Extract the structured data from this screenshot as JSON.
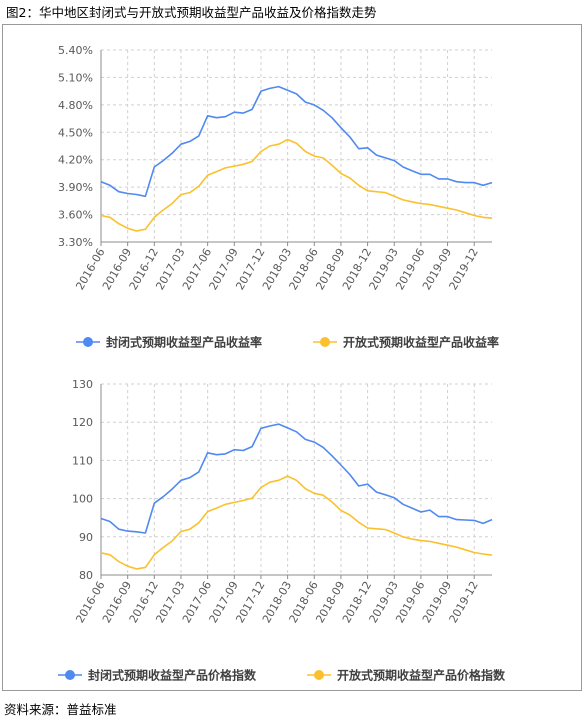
{
  "figure_title": "图2：华中地区封闭式与开放式预期收益型产品收益及价格指数走势",
  "source_note": "资料来源：普益标准",
  "colors": {
    "series1": "#5089f0",
    "series2": "#fbc02d",
    "grid": "#d0d0d0",
    "axis": "#8c8c8c"
  },
  "chart_data": [
    {
      "type": "line",
      "title": "",
      "xlabel": "",
      "ylabel": "",
      "ylim": [
        3.3,
        5.4
      ],
      "y_ticks": [
        "3.30%",
        "3.60%",
        "3.90%",
        "4.20%",
        "4.50%",
        "4.80%",
        "5.10%",
        "5.40%"
      ],
      "x_tick_labels": [
        "2016-06",
        "2016-09",
        "2016-12",
        "2017-03",
        "2017-06",
        "2017-09",
        "2017-12",
        "2018-03",
        "2018-06",
        "2018-09",
        "2018-12",
        "2019-03",
        "2019-06",
        "2019-09",
        "2019-12"
      ],
      "grid": true,
      "legend_position": "bottom",
      "x": [
        "2016-06",
        "2016-07",
        "2016-08",
        "2016-09",
        "2016-10",
        "2016-11",
        "2016-12",
        "2017-01",
        "2017-02",
        "2017-03",
        "2017-04",
        "2017-05",
        "2017-06",
        "2017-07",
        "2017-08",
        "2017-09",
        "2017-10",
        "2017-11",
        "2017-12",
        "2018-01",
        "2018-02",
        "2018-03",
        "2018-04",
        "2018-05",
        "2018-06",
        "2018-07",
        "2018-08",
        "2018-09",
        "2018-10",
        "2018-11",
        "2018-12",
        "2019-01",
        "2019-02",
        "2019-03",
        "2019-04",
        "2019-05",
        "2019-06",
        "2019-07",
        "2019-08",
        "2019-09",
        "2019-10",
        "2019-11",
        "2019-12",
        "2020-01",
        "2020-02"
      ],
      "series": [
        {
          "name": "封闭式预期收益型产品收益率",
          "values": [
            3.96,
            3.92,
            3.85,
            3.83,
            3.82,
            3.8,
            4.12,
            4.19,
            4.27,
            4.37,
            4.4,
            4.46,
            4.68,
            4.66,
            4.67,
            4.72,
            4.71,
            4.75,
            4.95,
            4.98,
            5.0,
            4.96,
            4.92,
            4.83,
            4.8,
            4.74,
            4.66,
            4.55,
            4.45,
            4.32,
            4.33,
            4.25,
            4.22,
            4.19,
            4.12,
            4.08,
            4.04,
            4.04,
            3.99,
            3.99,
            3.96,
            3.95,
            3.95,
            3.92,
            3.95
          ]
        },
        {
          "name": "开放式预期收益型产品收益率",
          "values": [
            3.59,
            3.57,
            3.5,
            3.45,
            3.42,
            3.44,
            3.57,
            3.65,
            3.72,
            3.82,
            3.84,
            3.91,
            4.03,
            4.07,
            4.11,
            4.13,
            4.15,
            4.18,
            4.29,
            4.35,
            4.37,
            4.42,
            4.38,
            4.29,
            4.24,
            4.22,
            4.14,
            4.05,
            4.0,
            3.92,
            3.86,
            3.85,
            3.84,
            3.8,
            3.76,
            3.74,
            3.72,
            3.71,
            3.69,
            3.67,
            3.65,
            3.62,
            3.59,
            3.57,
            3.56
          ]
        }
      ]
    },
    {
      "type": "line",
      "title": "",
      "xlabel": "",
      "ylabel": "",
      "ylim": [
        80,
        130
      ],
      "y_ticks": [
        "80",
        "90",
        "100",
        "110",
        "120",
        "130"
      ],
      "x_tick_labels": [
        "2016-06",
        "2016-09",
        "2016-12",
        "2017-03",
        "2017-06",
        "2017-09",
        "2017-12",
        "2018-03",
        "2018-06",
        "2018-09",
        "2018-12",
        "2019-03",
        "2019-06",
        "2019-09",
        "2019-12"
      ],
      "grid": true,
      "legend_position": "bottom",
      "x": [
        "2016-06",
        "2016-07",
        "2016-08",
        "2016-09",
        "2016-10",
        "2016-11",
        "2016-12",
        "2017-01",
        "2017-02",
        "2017-03",
        "2017-04",
        "2017-05",
        "2017-06",
        "2017-07",
        "2017-08",
        "2017-09",
        "2017-10",
        "2017-11",
        "2017-12",
        "2018-01",
        "2018-02",
        "2018-03",
        "2018-04",
        "2018-05",
        "2018-06",
        "2018-07",
        "2018-08",
        "2018-09",
        "2018-10",
        "2018-11",
        "2018-12",
        "2019-01",
        "2019-02",
        "2019-03",
        "2019-04",
        "2019-05",
        "2019-06",
        "2019-07",
        "2019-08",
        "2019-09",
        "2019-10",
        "2019-11",
        "2019-12",
        "2020-01",
        "2020-02"
      ],
      "series": [
        {
          "name": "封闭式预期收益型产品价格指数",
          "values": [
            94.8,
            94.0,
            92.0,
            91.5,
            91.3,
            91.0,
            98.8,
            100.5,
            102.5,
            104.8,
            105.5,
            107.0,
            112.0,
            111.5,
            111.7,
            112.8,
            112.6,
            113.6,
            118.4,
            119.0,
            119.5,
            118.5,
            117.5,
            115.5,
            114.8,
            113.4,
            111.2,
            108.8,
            106.3,
            103.3,
            103.8,
            101.7,
            101.0,
            100.2,
            98.5,
            97.5,
            96.5,
            97.0,
            95.3,
            95.3,
            94.5,
            94.4,
            94.3,
            93.5,
            94.5
          ]
        },
        {
          "name": "开放式预期收益型产品价格指数",
          "values": [
            85.8,
            85.3,
            83.5,
            82.3,
            81.6,
            82.0,
            85.3,
            87.2,
            88.9,
            91.4,
            92.0,
            93.7,
            96.6,
            97.5,
            98.5,
            99.0,
            99.5,
            100.1,
            102.9,
            104.3,
            104.8,
            105.9,
            104.8,
            102.6,
            101.4,
            100.9,
            99.1,
            96.9,
            95.7,
            93.8,
            92.3,
            92.1,
            91.9,
            91.0,
            90.0,
            89.4,
            89.0,
            88.8,
            88.3,
            87.8,
            87.3,
            86.6,
            85.9,
            85.5,
            85.2
          ]
        }
      ]
    }
  ]
}
